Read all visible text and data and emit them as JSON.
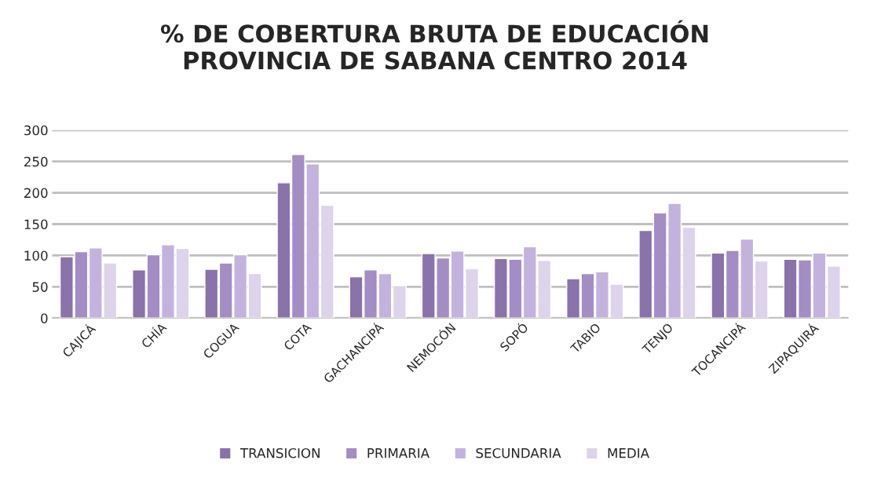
{
  "chart_data": {
    "type": "bar",
    "title": "% DE COBERTURA BRUTA DE EDUCACIÓN\nPROVINCIA DE SABANA CENTRO 2014",
    "categories": [
      "CAJICÁ",
      "CHÍA",
      "COGUA",
      "COTA",
      "GACHANCIPÁ",
      "NEMOCÓN",
      "SOPÓ",
      "TABIO",
      "TENJO",
      "TOCANCIPÁ",
      "ZIPAQUIRÁ"
    ],
    "series": [
      {
        "name": "TRANSICION",
        "color": "#8a72aa",
        "values": [
          98,
          77,
          78,
          216,
          66,
          103,
          95,
          63,
          140,
          104,
          94
        ]
      },
      {
        "name": "PRIMARIA",
        "color": "#a48cc4",
        "values": [
          106,
          101,
          88,
          261,
          77,
          96,
          94,
          71,
          168,
          108,
          93
        ]
      },
      {
        "name": "SECUNDARIA",
        "color": "#c4b2de",
        "values": [
          112,
          117,
          101,
          246,
          71,
          107,
          114,
          74,
          183,
          126,
          104
        ]
      },
      {
        "name": "MEDIA",
        "color": "#ddd3ea",
        "values": [
          88,
          111,
          71,
          180,
          52,
          79,
          92,
          54,
          145,
          91,
          83
        ]
      }
    ],
    "ylim": [
      0,
      300
    ],
    "yticks": [
      0,
      50,
      100,
      150,
      200,
      250,
      300
    ],
    "grid": "y",
    "legend": "bottom"
  }
}
